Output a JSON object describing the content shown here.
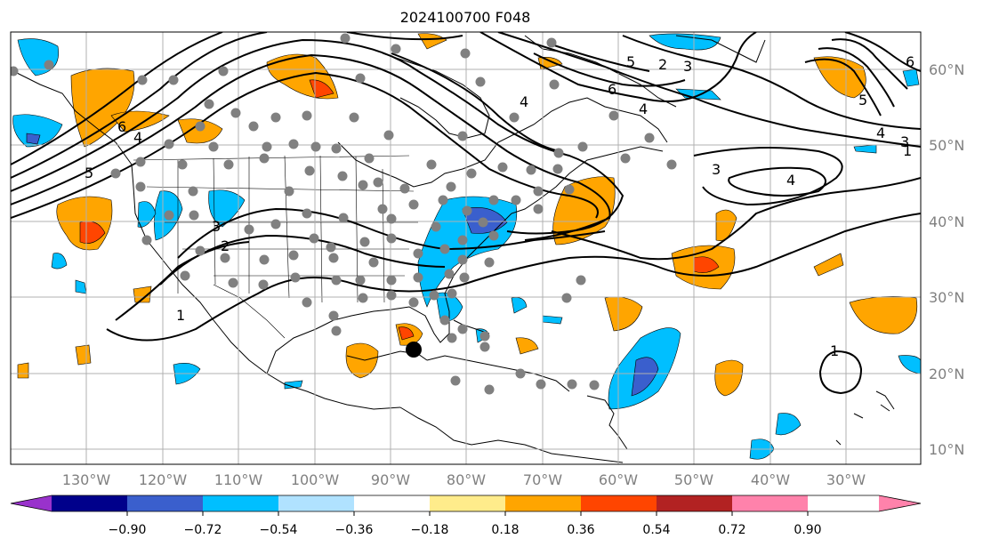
{
  "title": "2024100700 F048",
  "map": {
    "lon_labels": [
      "130°W",
      "120°W",
      "110°W",
      "100°W",
      "90°W",
      "80°W",
      "70°W",
      "60°W",
      "50°W",
      "40°W",
      "30°W"
    ],
    "lat_labels": [
      "60°N",
      "50°N",
      "40°N",
      "30°N",
      "20°N",
      "10°N"
    ],
    "contour_labels": [
      "1",
      "2",
      "3",
      "4",
      "5",
      "6",
      "6",
      "5",
      "4",
      "4",
      "3",
      "3",
      "4",
      "1",
      "1",
      "6",
      "5",
      "4",
      "3",
      "2"
    ],
    "storm_marker": "storm-center"
  },
  "colorbar": {
    "tick_labels": [
      "−0.90",
      "−0.72",
      "−0.54",
      "−0.36",
      "−0.18",
      "0.18",
      "0.36",
      "0.54",
      "0.72",
      "0.90"
    ],
    "colors": [
      "#9932cc",
      "#00008b",
      "#3a5fcd",
      "#00bfff",
      "#b0e2ff",
      "#ffffff",
      "#ffec8b",
      "#ffa500",
      "#ff4500",
      "#b22222",
      "#ff82ab"
    ]
  },
  "palette": {
    "neg_light": "#b0e2ff",
    "neg": "#00bfff",
    "neg_dark": "#3a5fcd",
    "pos": "#ffa500",
    "pos_dark": "#ff4500",
    "pos_darker": "#b22222",
    "station": "#808080",
    "grid": "#b0b0b0"
  }
}
